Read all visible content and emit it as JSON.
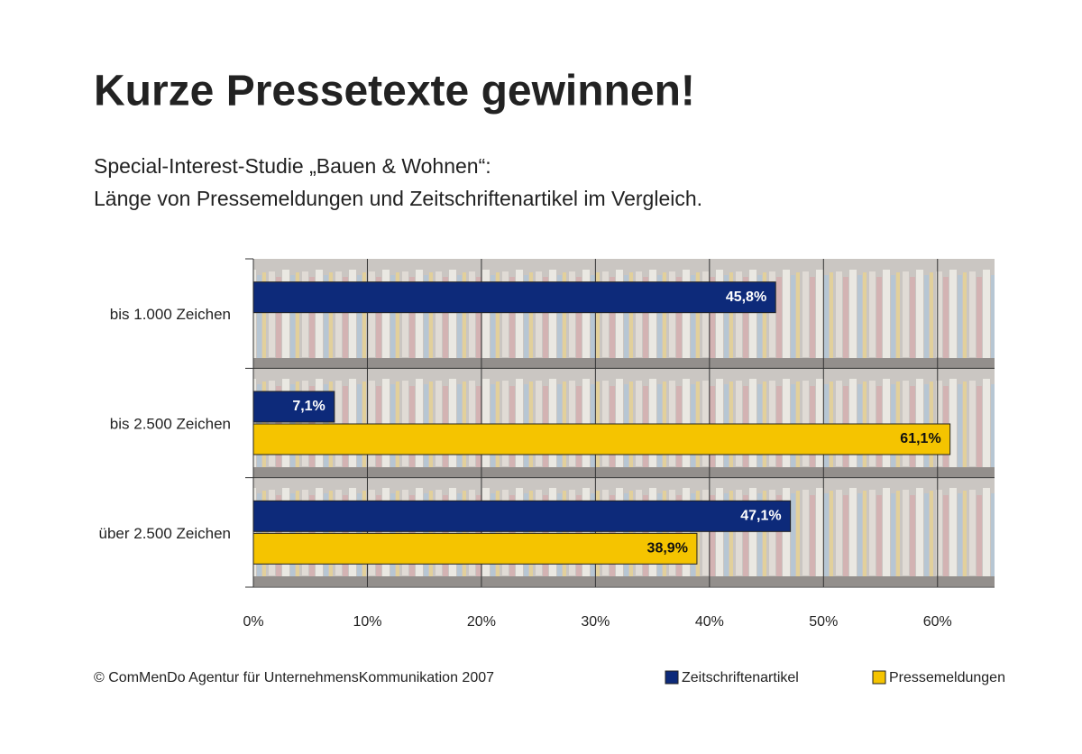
{
  "chart_data": {
    "type": "hbar",
    "title": "Kurze Pressetexte gewinnen!",
    "subtitle": [
      "Special-Interest-Studie „Bauen & Wohnen“:",
      "Länge von Pressemeldungen und Zeitschriftenartikel im Vergleich."
    ],
    "footer": "© ComMenDo Agentur für UnternehmensKommunikation 2007",
    "categories": [
      "bis 1.000 Zeichen",
      "bis 2.500 Zeichen",
      "über 2.500 Zeichen"
    ],
    "series": [
      {
        "name": "Zeitschriftenartikel",
        "color": "#0d2a7a",
        "values": [
          45.8,
          7.1,
          47.1
        ],
        "value_labels": [
          "45,8%",
          "7,1%",
          "47,1%"
        ]
      },
      {
        "name": "Pressemeldungen",
        "color": "#f5c400",
        "values": [
          null,
          61.1,
          38.9
        ],
        "value_labels": [
          null,
          "61,1%",
          "38,9%"
        ]
      }
    ],
    "xlim": [
      0,
      65
    ],
    "xticks": [
      {
        "value": 0,
        "label": "0%"
      },
      {
        "value": 10,
        "label": "10%"
      },
      {
        "value": 20,
        "label": "20%"
      },
      {
        "value": 30,
        "label": "30%"
      },
      {
        "value": 40,
        "label": "40%"
      },
      {
        "value": 50,
        "label": "50%"
      },
      {
        "value": 60,
        "label": "60%"
      }
    ],
    "grid": true
  }
}
